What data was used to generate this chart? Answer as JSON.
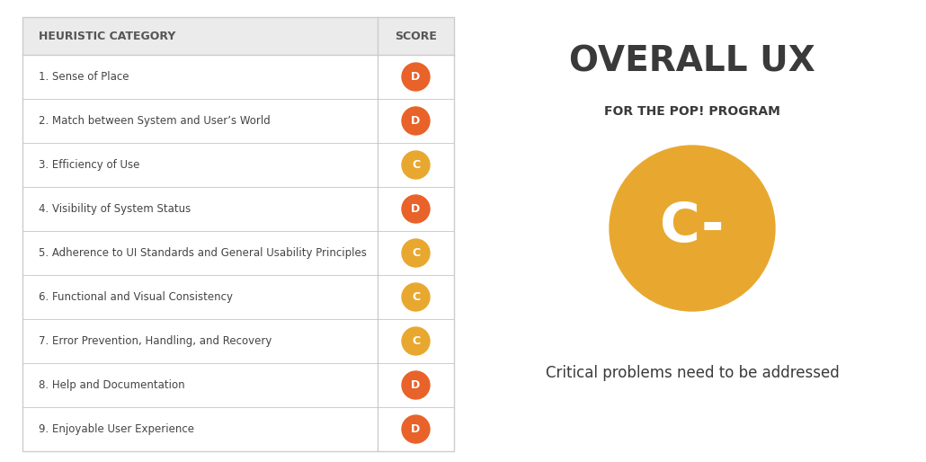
{
  "table_header": [
    "HEURISTIC CATEGORY",
    "SCORE"
  ],
  "rows": [
    {
      "label": "1. Sense of Place",
      "score": "D",
      "color": "#E8622A"
    },
    {
      "label": "2. Match between System and User’s World",
      "score": "D",
      "color": "#E8622A"
    },
    {
      "label": "3. Efficiency of Use",
      "score": "C",
      "color": "#E8A830"
    },
    {
      "label": "4. Visibility of System Status",
      "score": "D",
      "color": "#E8622A"
    },
    {
      "label": "5. Adherence to UI Standards and General Usability Principles",
      "score": "C",
      "color": "#E8A830"
    },
    {
      "label": "6. Functional and Visual Consistency",
      "score": "C",
      "color": "#E8A830"
    },
    {
      "label": "7. Error Prevention, Handling, and Recovery",
      "score": "C",
      "color": "#E8A830"
    },
    {
      "label": "8. Help and Documentation",
      "score": "D",
      "color": "#E8622A"
    },
    {
      "label": "9. Enjoyable User Experience",
      "score": "D",
      "color": "#E8622A"
    }
  ],
  "header_bg": "#EBEBEB",
  "header_text_color": "#555555",
  "row_text_color": "#444444",
  "table_border_color": "#CCCCCC",
  "row_line_color": "#A8C8D8",
  "overall_title": "OVERALL UX",
  "overall_subtitle": "FOR THE POP! PROGRAM",
  "overall_grade": "C-",
  "overall_circle_color": "#E8A830",
  "overall_text_color": "#3A3A3A",
  "overall_description": "Critical problems need to be addressed",
  "bg_color": "#FFFFFF"
}
